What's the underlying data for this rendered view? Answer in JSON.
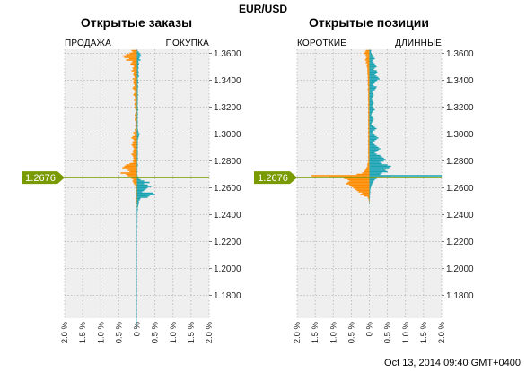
{
  "pair": "EUR/USD",
  "timestamp": "Oct 13, 2014 09:40 GMT+0400",
  "current_price_label": "1.2676",
  "colors": {
    "sell": "#ff8c00",
    "buy": "#1aa3b3",
    "price_line": "#7a9a01",
    "plot_bg": "#efefef",
    "grid": "#b5b5b5"
  },
  "chart_data": [
    {
      "type": "bar",
      "title": "Открытые заказы",
      "left_label": "ПРОДАЖА",
      "right_label": "ПОКУПКА",
      "orientation": "horizontal",
      "ylim": [
        1.163,
        1.363
      ],
      "xlim": [
        -2.0,
        2.0
      ],
      "yticks": [
        "1.3600",
        "1.3400",
        "1.3200",
        "1.3000",
        "1.2800",
        "1.2600",
        "1.2400",
        "1.2200",
        "1.2000",
        "1.1800"
      ],
      "xticks": [
        "2.0 %",
        "1.5 %",
        "1.0 %",
        "0.5 %",
        "0 %",
        "0.5 %",
        "1.0 %",
        "1.5 %",
        "2.0 %"
      ],
      "current_price": 1.2676,
      "price_step": 0.001,
      "bins_from": 1.362,
      "sell": [
        0.15,
        0.12,
        0.2,
        0.3,
        0.4,
        0.35,
        0.22,
        0.3,
        0.12,
        0.15,
        0.18,
        0.1,
        0.08,
        0.12,
        0.1,
        0.15,
        0.08,
        0.1,
        0.1,
        0.08,
        0.06,
        0.12,
        0.08,
        0.1,
        0.1,
        0.08,
        0.06,
        0.1,
        0.12,
        0.08,
        0.06,
        0.05,
        0.08,
        0.1,
        0.06,
        0.05,
        0.05,
        0.08,
        0.04,
        0.06,
        0.07,
        0.05,
        0.06,
        0.05,
        0.04,
        0.04,
        0.03,
        0.05,
        0.06,
        0.04,
        0.05,
        0.06,
        0.05,
        0.04,
        0.03,
        0.04,
        0.05,
        0.03,
        0.04,
        0.06,
        0.05,
        0.1,
        0.08,
        0.06,
        0.12,
        0.15,
        0.1,
        0.08,
        0.12,
        0.1,
        0.15,
        0.12,
        0.1,
        0.08,
        0.1,
        0.12,
        0.1,
        0.15,
        0.12,
        0.1,
        0.1,
        0.08,
        0.12,
        0.1,
        0.2,
        0.3,
        0.35,
        0.4,
        0.3,
        0.25,
        0.2,
        0.45,
        0.3,
        0.25,
        0.2,
        0.15,
        0.1,
        0.12,
        0.1,
        0.08,
        0.05,
        0.03,
        0.04,
        0.02,
        0.03,
        0.02,
        0.03,
        0.02,
        0.01,
        0.02,
        0.03,
        0.02,
        0.01,
        0.02,
        0.01,
        0.0,
        0.01,
        0,
        0,
        0,
        0,
        0,
        0,
        0,
        0,
        0,
        0,
        0,
        0,
        0,
        0,
        0,
        0,
        0,
        0,
        0,
        0,
        0,
        0,
        0,
        0,
        0,
        0,
        0,
        0,
        0,
        0,
        0,
        0,
        0,
        0,
        0,
        0,
        0,
        0,
        0,
        0,
        0,
        0,
        0,
        0,
        0,
        0,
        0,
        0,
        0,
        0,
        0,
        0,
        0,
        0,
        0,
        0,
        0,
        0,
        0,
        0,
        0,
        0,
        0,
        0,
        0,
        0,
        0,
        0,
        0,
        0,
        0,
        0,
        0,
        0,
        0,
        0,
        0,
        0,
        0,
        0,
        0,
        0,
        0,
        0,
        0,
        0,
        0,
        0,
        0,
        0,
        0,
        0,
        0,
        0,
        0,
        0,
        0
      ],
      "buy": [
        0.02,
        0.05,
        0.08,
        0.1,
        0.12,
        0.08,
        0.06,
        0.1,
        0.04,
        0.05,
        0.06,
        0.03,
        0.04,
        0.05,
        0.03,
        0.04,
        0.05,
        0.03,
        0.04,
        0.06,
        0.03,
        0.02,
        0.04,
        0.03,
        0.05,
        0.02,
        0.03,
        0.04,
        0.02,
        0.03,
        0.02,
        0.03,
        0.02,
        0.04,
        0.02,
        0.03,
        0.02,
        0.03,
        0.02,
        0.03,
        0.02,
        0.02,
        0.03,
        0.02,
        0.04,
        0.02,
        0.02,
        0.03,
        0.02,
        0.02,
        0.03,
        0.02,
        0.02,
        0.03,
        0.02,
        0.02,
        0.03,
        0.02,
        0.02,
        0.03,
        0.04,
        0.05,
        0.08,
        0.06,
        0.05,
        0.04,
        0.03,
        0.02,
        0.03,
        0.02,
        0.03,
        0.02,
        0.03,
        0.02,
        0.02,
        0.03,
        0.02,
        0.03,
        0.02,
        0.02,
        0.03,
        0.02,
        0.02,
        0.01,
        0.02,
        0.03,
        0.02,
        0.01,
        0.02,
        0.01,
        0.02,
        0.01,
        0.01,
        0.02,
        0.03,
        0.05,
        0.1,
        0.2,
        0.35,
        0.2,
        0.3,
        0.4,
        0.3,
        0.25,
        0.2,
        0.15,
        0.45,
        0.5,
        0.35,
        0.3,
        0.1,
        0.08,
        0.05,
        0.06,
        0.05,
        0.04,
        0.03,
        0.02,
        0.03,
        0.02,
        0.02,
        0.01,
        0.02,
        0.01,
        0.02,
        0.01,
        0.01,
        0.02,
        0.01,
        0.01,
        0.01,
        0.02,
        0.01,
        0.01,
        0.01,
        0.01,
        0.01,
        0.01,
        0.01,
        0.01,
        0.01,
        0.01,
        0.01,
        0.01,
        0.01,
        0.01,
        0.01,
        0.01,
        0.01,
        0.01,
        0.01,
        0.01,
        0.01,
        0.01,
        0.01,
        0.01,
        0.01,
        0.01,
        0.01,
        0.01,
        0.01,
        0.01,
        0.01,
        0.01,
        0.01,
        0.01,
        0.01,
        0.01,
        0.01,
        0.01,
        0.01,
        0.01,
        0.01,
        0.01,
        0.01,
        0.01,
        0.01,
        0.01,
        0.01,
        0.01,
        0.01,
        0.01,
        0.01,
        0.01,
        0.01,
        0.01,
        0.01,
        0.01,
        0.01,
        0.01,
        0.01,
        0.01,
        0.01,
        0.01,
        0.01,
        0.01,
        0.01,
        0.01,
        0.01,
        0.01,
        0.01,
        0.01,
        0.01,
        0.01,
        0.01,
        0.01
      ]
    },
    {
      "type": "bar",
      "title": "Открытые позиции",
      "left_label": "КОРОТКИЕ",
      "right_label": "ДЛИННЫЕ",
      "orientation": "horizontal",
      "ylim": [
        1.163,
        1.363
      ],
      "xlim": [
        -2.0,
        2.0
      ],
      "yticks": [
        "1.3600",
        "1.3400",
        "1.3200",
        "1.3000",
        "1.2800",
        "1.2600",
        "1.2400",
        "1.2200",
        "1.2000",
        "1.1800"
      ],
      "xticks": [
        "2.0 %",
        "1.5 %",
        "1.0 %",
        "0.5 %",
        "0 %",
        "0.5 %",
        "1.0 %",
        "1.5 %",
        "2.0 %"
      ],
      "current_price": 1.2676,
      "price_step": 0.001,
      "bins_from": 1.362,
      "short": [
        0.1,
        0.12,
        0.15,
        0.1,
        0.12,
        0.08,
        0.1,
        0.12,
        0.08,
        0.1,
        0.06,
        0.08,
        0.07,
        0.06,
        0.05,
        0.06,
        0.05,
        0.06,
        0.05,
        0.04,
        0.05,
        0.04,
        0.05,
        0.04,
        0.04,
        0.05,
        0.04,
        0.03,
        0.04,
        0.05,
        0.03,
        0.04,
        0.03,
        0.04,
        0.03,
        0.04,
        0.03,
        0.04,
        0.03,
        0.03,
        0.04,
        0.03,
        0.03,
        0.04,
        0.03,
        0.03,
        0.04,
        0.03,
        0.03,
        0.04,
        0.03,
        0.03,
        0.04,
        0.03,
        0.03,
        0.04,
        0.03,
        0.03,
        0.04,
        0.03,
        0.03,
        0.04,
        0.03,
        0.03,
        0.04,
        0.03,
        0.03,
        0.04,
        0.03,
        0.03,
        0.04,
        0.03,
        0.03,
        0.04,
        0.03,
        0.03,
        0.04,
        0.03,
        0.03,
        0.04,
        0.03,
        0.03,
        0.04,
        0.03,
        0.05,
        0.06,
        0.05,
        0.08,
        0.1,
        0.12,
        0.15,
        0.2,
        0.35,
        1.6,
        1.1,
        0.7,
        0.6,
        0.55,
        0.6,
        0.65,
        0.55,
        0.5,
        0.45,
        0.4,
        0.35,
        0.3,
        0.2,
        0.25,
        0.15,
        0.05,
        0.03,
        0.02,
        0.01,
        0.01,
        0,
        0,
        0,
        0,
        0,
        0,
        0,
        0,
        0,
        0,
        0,
        0,
        0,
        0,
        0,
        0,
        0,
        0,
        0,
        0,
        0,
        0,
        0,
        0,
        0,
        0,
        0,
        0,
        0,
        0,
        0,
        0,
        0,
        0,
        0,
        0,
        0,
        0,
        0,
        0,
        0,
        0,
        0,
        0,
        0,
        0,
        0,
        0,
        0,
        0,
        0,
        0,
        0,
        0,
        0,
        0,
        0,
        0,
        0,
        0,
        0,
        0,
        0,
        0,
        0,
        0,
        0,
        0,
        0,
        0,
        0,
        0,
        0,
        0,
        0,
        0,
        0,
        0,
        0,
        0,
        0,
        0,
        0,
        0,
        0,
        0,
        0,
        0,
        0,
        0,
        0,
        0,
        0,
        0,
        0,
        0,
        0
      ],
      "long": [
        0.05,
        0.04,
        0.06,
        0.08,
        0.1,
        0.12,
        0.15,
        0.1,
        0.08,
        0.12,
        0.15,
        0.18,
        0.2,
        0.15,
        0.12,
        0.2,
        0.22,
        0.18,
        0.15,
        0.2,
        0.25,
        0.28,
        0.22,
        0.18,
        0.15,
        0.1,
        0.12,
        0.2,
        0.18,
        0.15,
        0.1,
        0.08,
        0.1,
        0.12,
        0.1,
        0.08,
        0.06,
        0.08,
        0.1,
        0.12,
        0.1,
        0.08,
        0.1,
        0.12,
        0.15,
        0.1,
        0.08,
        0.06,
        0.05,
        0.08,
        0.1,
        0.12,
        0.1,
        0.08,
        0.06,
        0.05,
        0.1,
        0.15,
        0.2,
        0.15,
        0.1,
        0.08,
        0.12,
        0.15,
        0.2,
        0.25,
        0.2,
        0.15,
        0.1,
        0.12,
        0.15,
        0.2,
        0.25,
        0.3,
        0.25,
        0.2,
        0.15,
        0.2,
        0.3,
        0.35,
        0.4,
        0.45,
        0.4,
        0.3,
        0.35,
        0.5,
        0.6,
        0.55,
        0.4,
        0.45,
        0.5,
        0.35,
        0.3,
        2.0,
        0.6,
        0.2,
        0.15,
        0.12,
        0.1,
        0.08,
        0.06,
        0.05,
        0.04,
        0.03,
        0.02,
        0.03,
        0.02,
        0.02,
        0.01,
        0.02,
        0.01,
        0.01,
        0.01,
        0.01,
        0.01,
        0,
        0,
        0,
        0,
        0,
        0,
        0,
        0,
        0,
        0,
        0,
        0,
        0,
        0,
        0,
        0,
        0,
        0,
        0,
        0,
        0,
        0,
        0,
        0,
        0,
        0,
        0,
        0,
        0,
        0,
        0,
        0,
        0,
        0,
        0,
        0,
        0,
        0,
        0,
        0,
        0,
        0,
        0,
        0,
        0,
        0,
        0,
        0,
        0,
        0,
        0,
        0,
        0,
        0,
        0,
        0,
        0,
        0,
        0,
        0,
        0,
        0,
        0,
        0,
        0,
        0,
        0,
        0,
        0,
        0,
        0,
        0,
        0,
        0,
        0,
        0,
        0,
        0,
        0,
        0,
        0,
        0,
        0,
        0,
        0,
        0,
        0,
        0,
        0,
        0,
        0,
        0,
        0,
        0,
        0,
        0,
        0,
        0
      ]
    }
  ]
}
